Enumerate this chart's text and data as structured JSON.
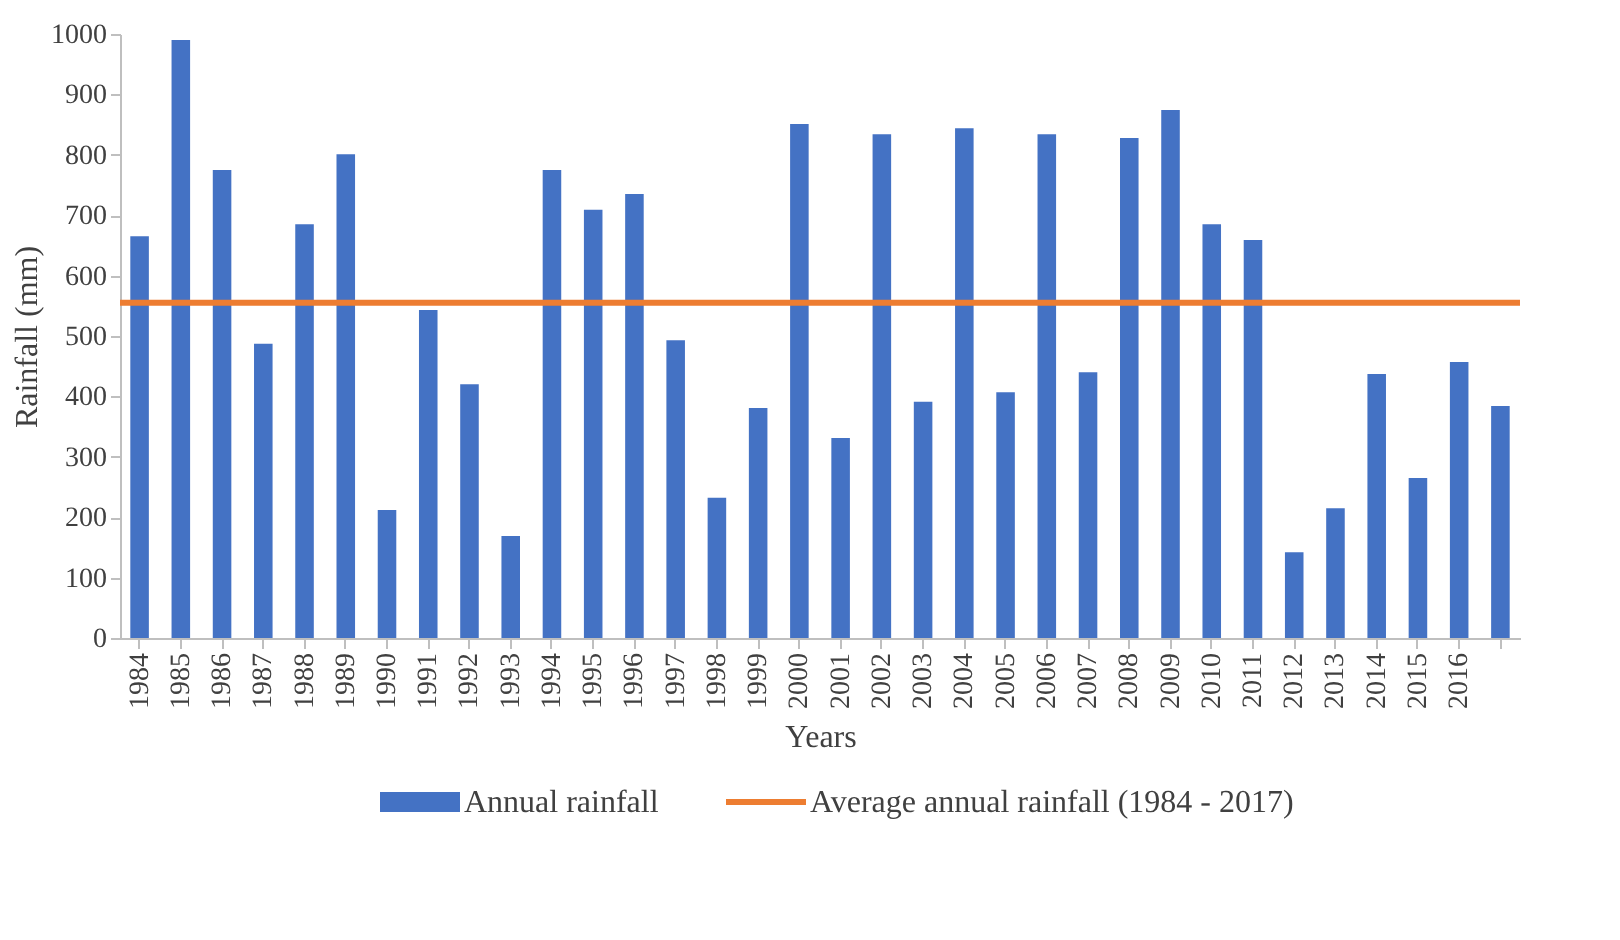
{
  "chart_data": {
    "type": "bar",
    "xlabel": "Years",
    "ylabel": "Rainfall (mm)",
    "categories": [
      "1984",
      "1985",
      "1986",
      "1987",
      "1988",
      "1989",
      "1990",
      "1991",
      "1992",
      "1993",
      "1994",
      "1995",
      "1996",
      "1997",
      "1998",
      "1999",
      "2000",
      "2001",
      "2002",
      "2003",
      "2004",
      "2005",
      "2006",
      "2007",
      "2008",
      "2009",
      "2010",
      "2011",
      "2012",
      "2013",
      "2014",
      "2015",
      "2016",
      null
    ],
    "series": [
      {
        "name": "Annual rainfall",
        "color": "#4472c4",
        "values": [
          665,
          990,
          775,
          487,
          685,
          801,
          212,
          543,
          420,
          169,
          775,
          709,
          735,
          493,
          232,
          381,
          851,
          331,
          834,
          391,
          844,
          407,
          834,
          440,
          828,
          874,
          685,
          659,
          142,
          215,
          437,
          265,
          457,
          384
        ]
      }
    ],
    "ref_lines": [
      {
        "axis": "y",
        "value": 555,
        "label": "Average annual rainfall (1984 - 2017)",
        "color": "#ed7d31"
      }
    ],
    "ylim": [
      0,
      1000
    ],
    "yticks": [
      0,
      100,
      200,
      300,
      400,
      500,
      600,
      700,
      800,
      900,
      1000
    ],
    "grid": false,
    "legend": "bottom"
  }
}
